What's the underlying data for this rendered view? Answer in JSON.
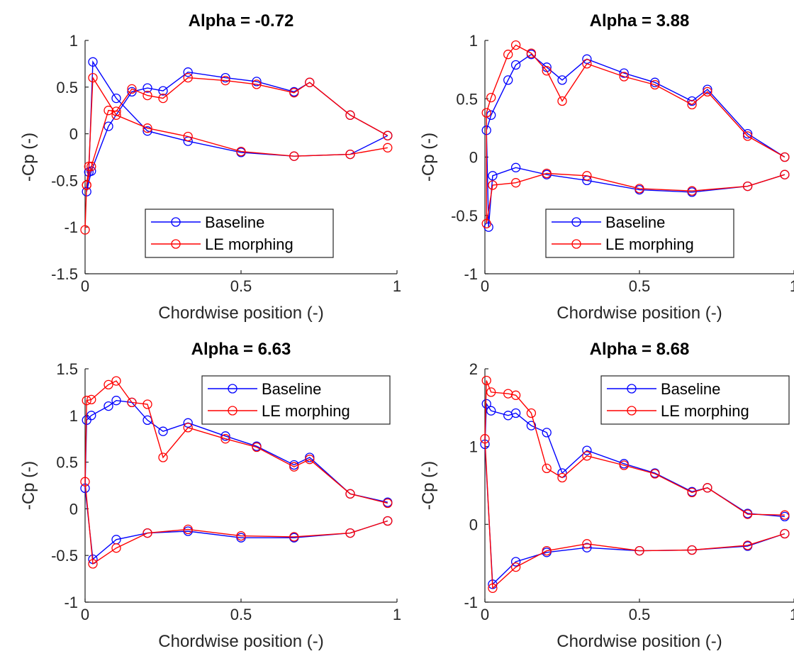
{
  "chart_data": [
    {
      "type": "line",
      "title": "Alpha = -0.72",
      "xlabel": "Chordwise position (-)",
      "ylabel": "-Cp (-)",
      "xlim": [
        0,
        1
      ],
      "ylim": [
        -1.5,
        1
      ],
      "xticks": [
        0,
        0.5,
        1
      ],
      "xtick_labels": [
        "0",
        "0.5",
        "1"
      ],
      "yticks": [
        -1.5,
        -1,
        -0.5,
        0,
        0.5,
        1
      ],
      "ytick_labels": [
        "-1.5",
        "-1",
        "-0.5",
        "0",
        "0.5",
        "1"
      ],
      "grid": false,
      "legend_position": "bottom-center",
      "series": [
        {
          "name": "Baseline",
          "color": "#0000ff",
          "marker": "circle",
          "points": [
            [
              0.97,
              -0.02
            ],
            [
              0.85,
              -0.22
            ],
            [
              0.67,
              -0.24
            ],
            [
              0.5,
              -0.2
            ],
            [
              0.33,
              -0.08
            ],
            [
              0.2,
              0.03
            ],
            [
              0.1,
              0.38
            ],
            [
              0.025,
              0.77
            ],
            [
              0.012,
              -0.41
            ],
            [
              0.005,
              -0.62
            ],
            [
              0.02,
              -0.4
            ],
            [
              0.075,
              0.08
            ],
            [
              0.15,
              0.45
            ],
            [
              0.2,
              0.49
            ],
            [
              0.25,
              0.46
            ],
            [
              0.33,
              0.66
            ],
            [
              0.45,
              0.6
            ],
            [
              0.55,
              0.56
            ],
            [
              0.67,
              0.45
            ],
            [
              0.72,
              0.55
            ],
            [
              0.85,
              0.2
            ],
            [
              0.97,
              -0.02
            ]
          ]
        },
        {
          "name": "LE morphing",
          "color": "#ff0000",
          "marker": "circle",
          "points": [
            [
              0.97,
              -0.15
            ],
            [
              0.85,
              -0.22
            ],
            [
              0.67,
              -0.24
            ],
            [
              0.5,
              -0.19
            ],
            [
              0.33,
              -0.03
            ],
            [
              0.2,
              0.06
            ],
            [
              0.1,
              0.2
            ],
            [
              0.025,
              0.6
            ],
            [
              0.012,
              -0.35
            ],
            [
              0.005,
              -0.55
            ],
            [
              0.0,
              -1.03
            ],
            [
              0.005,
              -0.55
            ],
            [
              0.02,
              -0.35
            ],
            [
              0.075,
              0.25
            ],
            [
              0.1,
              0.24
            ],
            [
              0.15,
              0.48
            ],
            [
              0.2,
              0.41
            ],
            [
              0.25,
              0.38
            ],
            [
              0.33,
              0.6
            ],
            [
              0.45,
              0.57
            ],
            [
              0.55,
              0.53
            ],
            [
              0.67,
              0.44
            ],
            [
              0.72,
              0.55
            ],
            [
              0.85,
              0.2
            ],
            [
              0.97,
              -0.02
            ]
          ]
        }
      ]
    },
    {
      "type": "line",
      "title": "Alpha = 3.88",
      "xlabel": "Chordwise position (-)",
      "ylabel": "-Cp (-)",
      "xlim": [
        0,
        1
      ],
      "ylim": [
        -1,
        1
      ],
      "xticks": [
        0,
        0.5,
        1
      ],
      "xtick_labels": [
        "0",
        "0.5",
        "1"
      ],
      "yticks": [
        -1,
        -0.5,
        0,
        0.5,
        1
      ],
      "ytick_labels": [
        "-1",
        "-0.5",
        "0",
        "0.5",
        "1"
      ],
      "grid": false,
      "legend_position": "bottom-center",
      "series": [
        {
          "name": "Baseline",
          "color": "#0000ff",
          "marker": "circle",
          "points": [
            [
              0.97,
              -0.15
            ],
            [
              0.85,
              -0.25
            ],
            [
              0.67,
              -0.3
            ],
            [
              0.5,
              -0.28
            ],
            [
              0.33,
              -0.2
            ],
            [
              0.2,
              -0.15
            ],
            [
              0.1,
              -0.09
            ],
            [
              0.025,
              -0.16
            ],
            [
              0.012,
              -0.6
            ],
            [
              0.005,
              0.23
            ],
            [
              0.02,
              0.36
            ],
            [
              0.075,
              0.66
            ],
            [
              0.1,
              0.79
            ],
            [
              0.15,
              0.88
            ],
            [
              0.2,
              0.77
            ],
            [
              0.25,
              0.66
            ],
            [
              0.33,
              0.84
            ],
            [
              0.45,
              0.72
            ],
            [
              0.55,
              0.64
            ],
            [
              0.67,
              0.48
            ],
            [
              0.72,
              0.58
            ],
            [
              0.85,
              0.2
            ],
            [
              0.97,
              0.0
            ]
          ]
        },
        {
          "name": "LE morphing",
          "color": "#ff0000",
          "marker": "circle",
          "points": [
            [
              0.97,
              -0.15
            ],
            [
              0.85,
              -0.25
            ],
            [
              0.67,
              -0.29
            ],
            [
              0.5,
              -0.27
            ],
            [
              0.33,
              -0.16
            ],
            [
              0.2,
              -0.14
            ],
            [
              0.1,
              -0.22
            ],
            [
              0.025,
              -0.24
            ],
            [
              0.005,
              -0.57
            ],
            [
              0.005,
              0.38
            ],
            [
              0.02,
              0.51
            ],
            [
              0.075,
              0.88
            ],
            [
              0.1,
              0.96
            ],
            [
              0.15,
              0.89
            ],
            [
              0.2,
              0.74
            ],
            [
              0.25,
              0.48
            ],
            [
              0.33,
              0.8
            ],
            [
              0.45,
              0.69
            ],
            [
              0.55,
              0.62
            ],
            [
              0.67,
              0.45
            ],
            [
              0.72,
              0.56
            ],
            [
              0.85,
              0.18
            ],
            [
              0.97,
              0.0
            ]
          ]
        }
      ]
    },
    {
      "type": "line",
      "title": "Alpha = 6.63",
      "xlabel": "Chordwise position (-)",
      "ylabel": "-Cp (-)",
      "xlim": [
        0,
        1
      ],
      "ylim": [
        -1,
        1.5
      ],
      "xticks": [
        0,
        0.5,
        1
      ],
      "xtick_labels": [
        "0",
        "0.5",
        "1"
      ],
      "yticks": [
        -1,
        -0.5,
        0,
        0.5,
        1,
        1.5
      ],
      "ytick_labels": [
        "-1",
        "-0.5",
        "0",
        "0.5",
        "1",
        "1.5"
      ],
      "grid": false,
      "legend_position": "top-right",
      "series": [
        {
          "name": "Baseline",
          "color": "#0000ff",
          "marker": "circle",
          "points": [
            [
              0.97,
              -0.13
            ],
            [
              0.85,
              -0.26
            ],
            [
              0.67,
              -0.31
            ],
            [
              0.5,
              -0.31
            ],
            [
              0.33,
              -0.24
            ],
            [
              0.2,
              -0.26
            ],
            [
              0.1,
              -0.33
            ],
            [
              0.025,
              -0.54
            ],
            [
              0.0,
              0.22
            ],
            [
              0.005,
              0.95
            ],
            [
              0.02,
              1.0
            ],
            [
              0.075,
              1.1
            ],
            [
              0.1,
              1.16
            ],
            [
              0.15,
              1.14
            ],
            [
              0.2,
              0.95
            ],
            [
              0.25,
              0.83
            ],
            [
              0.33,
              0.92
            ],
            [
              0.45,
              0.78
            ],
            [
              0.55,
              0.67
            ],
            [
              0.67,
              0.47
            ],
            [
              0.72,
              0.55
            ],
            [
              0.85,
              0.16
            ],
            [
              0.97,
              0.07
            ]
          ]
        },
        {
          "name": "LE morphing",
          "color": "#ff0000",
          "marker": "circle",
          "points": [
            [
              0.97,
              -0.13
            ],
            [
              0.85,
              -0.26
            ],
            [
              0.67,
              -0.3
            ],
            [
              0.5,
              -0.29
            ],
            [
              0.33,
              -0.22
            ],
            [
              0.2,
              -0.26
            ],
            [
              0.1,
              -0.42
            ],
            [
              0.025,
              -0.59
            ],
            [
              0.0,
              0.29
            ],
            [
              0.005,
              1.16
            ],
            [
              0.02,
              1.17
            ],
            [
              0.075,
              1.33
            ],
            [
              0.1,
              1.37
            ],
            [
              0.15,
              1.14
            ],
            [
              0.2,
              1.12
            ],
            [
              0.25,
              0.55
            ],
            [
              0.33,
              0.87
            ],
            [
              0.45,
              0.75
            ],
            [
              0.55,
              0.66
            ],
            [
              0.67,
              0.45
            ],
            [
              0.72,
              0.53
            ],
            [
              0.85,
              0.16
            ],
            [
              0.97,
              0.06
            ]
          ]
        }
      ]
    },
    {
      "type": "line",
      "title": "Alpha = 8.68",
      "xlabel": "Chordwise position (-)",
      "ylabel": "-Cp (-)",
      "xlim": [
        0,
        1
      ],
      "ylim": [
        -1,
        2
      ],
      "xticks": [
        0,
        0.5,
        1
      ],
      "xtick_labels": [
        "0",
        "0.5",
        "1"
      ],
      "yticks": [
        -1,
        0,
        1,
        2
      ],
      "ytick_labels": [
        "-1",
        "0",
        "1",
        "2"
      ],
      "grid": false,
      "legend_position": "top-right",
      "series": [
        {
          "name": "Baseline",
          "color": "#0000ff",
          "marker": "circle",
          "points": [
            [
              0.97,
              -0.12
            ],
            [
              0.85,
              -0.28
            ],
            [
              0.67,
              -0.33
            ],
            [
              0.5,
              -0.34
            ],
            [
              0.33,
              -0.3
            ],
            [
              0.2,
              -0.36
            ],
            [
              0.1,
              -0.48
            ],
            [
              0.025,
              -0.77
            ],
            [
              0.0,
              1.03
            ],
            [
              0.005,
              1.55
            ],
            [
              0.02,
              1.46
            ],
            [
              0.075,
              1.4
            ],
            [
              0.1,
              1.43
            ],
            [
              0.15,
              1.27
            ],
            [
              0.2,
              1.18
            ],
            [
              0.25,
              0.66
            ],
            [
              0.33,
              0.95
            ],
            [
              0.45,
              0.78
            ],
            [
              0.55,
              0.66
            ],
            [
              0.67,
              0.42
            ],
            [
              0.72,
              0.47
            ],
            [
              0.85,
              0.14
            ],
            [
              0.97,
              0.1
            ]
          ]
        },
        {
          "name": "LE morphing",
          "color": "#ff0000",
          "marker": "circle",
          "points": [
            [
              0.97,
              -0.12
            ],
            [
              0.85,
              -0.27
            ],
            [
              0.67,
              -0.33
            ],
            [
              0.5,
              -0.34
            ],
            [
              0.33,
              -0.25
            ],
            [
              0.2,
              -0.34
            ],
            [
              0.1,
              -0.55
            ],
            [
              0.025,
              -0.82
            ],
            [
              0.0,
              1.1
            ],
            [
              0.005,
              1.85
            ],
            [
              0.02,
              1.7
            ],
            [
              0.075,
              1.68
            ],
            [
              0.1,
              1.66
            ],
            [
              0.15,
              1.43
            ],
            [
              0.2,
              0.72
            ],
            [
              0.25,
              0.6
            ],
            [
              0.33,
              0.88
            ],
            [
              0.45,
              0.76
            ],
            [
              0.55,
              0.65
            ],
            [
              0.67,
              0.41
            ],
            [
              0.72,
              0.47
            ],
            [
              0.85,
              0.13
            ],
            [
              0.97,
              0.12
            ]
          ]
        }
      ]
    }
  ]
}
